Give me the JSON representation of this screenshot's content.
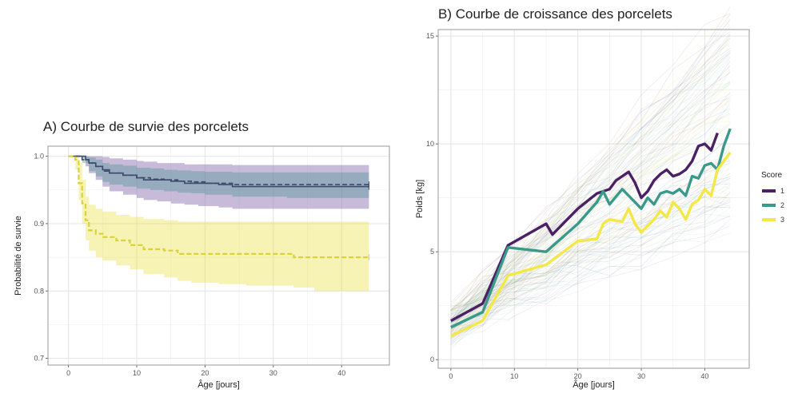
{
  "chart_data": [
    {
      "type": "line",
      "subtype": "kaplan-meier step curves with confidence bands",
      "title": "A) Courbe de survie des porcelets",
      "xlabel": "Âge [jours]",
      "ylabel": "Probabilité de survie",
      "xlim": [
        -3,
        47
      ],
      "ylim": [
        0.69,
        1.015
      ],
      "x_ticks": [
        0,
        10,
        20,
        30,
        40
      ],
      "y_ticks": [
        0.7,
        0.8,
        0.9,
        1.0
      ],
      "x_tick_labels": [
        "0",
        "10",
        "20",
        "30",
        "40"
      ],
      "y_tick_labels": [
        "0.7",
        "0.8",
        "0.9",
        "1.0"
      ],
      "grid": true,
      "legend": "none",
      "series": [
        {
          "score": 1,
          "color": "#7b5ea7",
          "line": "solid",
          "x": [
            0,
            1,
            2.5,
            3,
            4,
            5,
            6,
            8,
            10,
            11,
            13,
            15,
            17,
            19,
            22,
            24,
            27,
            29,
            32,
            34,
            37,
            40,
            44
          ],
          "y": [
            1.0,
            1.0,
            0.995,
            0.99,
            0.985,
            0.98,
            0.975,
            0.972,
            0.968,
            0.965,
            0.965,
            0.963,
            0.96,
            0.96,
            0.958,
            0.955,
            0.955,
            0.955,
            0.955,
            0.955,
            0.955,
            0.955,
            0.955
          ],
          "ci_lower": [
            1.0,
            1.0,
            0.985,
            0.975,
            0.965,
            0.955,
            0.948,
            0.943,
            0.938,
            0.935,
            0.933,
            0.93,
            0.928,
            0.926,
            0.924,
            0.922,
            0.922,
            0.922,
            0.922,
            0.922,
            0.922,
            0.922,
            0.922
          ],
          "ci_upper": [
            1.0,
            1.0,
            1.0,
            1.0,
            1.0,
            0.999,
            0.997,
            0.995,
            0.993,
            0.992,
            0.99,
            0.99,
            0.988,
            0.988,
            0.988,
            0.987,
            0.987,
            0.987,
            0.987,
            0.987,
            0.987,
            0.987,
            0.987
          ]
        },
        {
          "score": 2,
          "color": "#3a8f8a",
          "line": "dashed",
          "x": [
            0,
            1,
            2,
            3,
            4,
            5,
            6,
            8,
            10,
            12,
            14,
            16,
            18,
            20,
            24,
            28,
            32,
            36,
            40,
            44
          ],
          "y": [
            1.0,
            1.0,
            0.995,
            0.99,
            0.985,
            0.978,
            0.975,
            0.972,
            0.968,
            0.966,
            0.965,
            0.963,
            0.962,
            0.96,
            0.958,
            0.958,
            0.958,
            0.958,
            0.958,
            0.958
          ],
          "ci_lower": [
            1.0,
            1.0,
            0.99,
            0.978,
            0.97,
            0.962,
            0.958,
            0.955,
            0.952,
            0.95,
            0.948,
            0.946,
            0.945,
            0.943,
            0.94,
            0.94,
            0.938,
            0.938,
            0.938,
            0.938
          ],
          "ci_upper": [
            1.0,
            1.0,
            1.0,
            0.998,
            0.995,
            0.99,
            0.988,
            0.986,
            0.983,
            0.982,
            0.98,
            0.979,
            0.978,
            0.977,
            0.976,
            0.976,
            0.976,
            0.976,
            0.976,
            0.976
          ]
        },
        {
          "score": 3,
          "color": "#e8df3a",
          "line": "dashed",
          "x": [
            0,
            1,
            1.5,
            2,
            2.5,
            3,
            4,
            5,
            7,
            9,
            11,
            14,
            16,
            18,
            22,
            26,
            30,
            33,
            36,
            40,
            44
          ],
          "y": [
            1.0,
            0.995,
            0.96,
            0.93,
            0.905,
            0.89,
            0.885,
            0.88,
            0.875,
            0.868,
            0.862,
            0.86,
            0.855,
            0.855,
            0.855,
            0.855,
            0.855,
            0.85,
            0.85,
            0.85,
            0.85
          ],
          "ci_lower": [
            1.0,
            0.98,
            0.935,
            0.9,
            0.875,
            0.86,
            0.85,
            0.845,
            0.838,
            0.832,
            0.825,
            0.82,
            0.815,
            0.812,
            0.81,
            0.808,
            0.808,
            0.805,
            0.8,
            0.8,
            0.8
          ],
          "ci_upper": [
            1.0,
            1.0,
            0.99,
            0.965,
            0.94,
            0.928,
            0.922,
            0.918,
            0.913,
            0.91,
            0.907,
            0.905,
            0.903,
            0.903,
            0.903,
            0.903,
            0.903,
            0.903,
            0.903,
            0.903,
            0.903
          ]
        }
      ]
    },
    {
      "type": "line",
      "subtype": "mean growth curves over individual spaghetti trajectories",
      "title": "B) Courbe de croissance des porcelets",
      "xlabel": "Âge [jours]",
      "ylabel": "Poids [kg]",
      "xlim": [
        -2,
        47
      ],
      "ylim": [
        -0.4,
        15.3
      ],
      "x_ticks": [
        0,
        10,
        20,
        30,
        40
      ],
      "y_ticks": [
        0,
        5,
        10,
        15
      ],
      "x_tick_labels": [
        "0",
        "10",
        "20",
        "30",
        "40"
      ],
      "y_tick_labels": [
        "0",
        "5",
        "10",
        "15"
      ],
      "grid": true,
      "legend": "right",
      "legend_title": "Score",
      "series": [
        {
          "name": "1",
          "color": "#4a2165",
          "x": [
            0,
            5,
            9,
            15,
            16,
            20,
            23,
            25,
            26,
            27,
            28,
            29,
            30,
            31,
            32,
            33,
            34,
            35,
            36,
            37,
            38,
            39,
            40,
            41,
            42
          ],
          "y": [
            1.8,
            2.6,
            5.3,
            6.3,
            5.8,
            7.0,
            7.7,
            7.9,
            8.3,
            8.5,
            8.7,
            8.2,
            7.5,
            7.8,
            8.3,
            8.6,
            8.8,
            8.5,
            8.6,
            8.8,
            9.2,
            9.9,
            10.0,
            9.7,
            10.5
          ]
        },
        {
          "name": "2",
          "color": "#3a9a8a",
          "x": [
            0,
            5,
            9,
            15,
            20,
            23,
            24,
            25,
            27,
            28,
            29,
            30,
            31,
            32,
            33,
            34,
            35,
            36,
            37,
            38,
            39,
            40,
            41,
            42,
            43,
            44
          ],
          "y": [
            1.5,
            2.2,
            5.2,
            5.0,
            6.3,
            7.3,
            7.8,
            7.2,
            7.9,
            7.6,
            7.3,
            7.0,
            7.5,
            7.2,
            7.7,
            7.8,
            7.7,
            7.9,
            7.6,
            8.5,
            8.4,
            9.0,
            9.1,
            8.8,
            9.9,
            10.7
          ]
        },
        {
          "name": "3",
          "color": "#f3e845",
          "x": [
            0,
            5,
            9,
            15,
            20,
            23,
            24,
            25,
            27,
            28,
            29,
            30,
            31,
            32,
            33,
            34,
            35,
            36,
            37,
            38,
            39,
            40,
            41,
            42,
            43,
            44
          ],
          "y": [
            1.1,
            1.8,
            3.9,
            4.4,
            5.5,
            5.6,
            6.3,
            6.5,
            6.4,
            7.0,
            6.3,
            5.9,
            6.2,
            6.5,
            6.9,
            6.6,
            7.3,
            7.0,
            6.5,
            7.2,
            7.4,
            7.9,
            7.6,
            8.8,
            9.2,
            9.6
          ]
        }
      ]
    }
  ]
}
